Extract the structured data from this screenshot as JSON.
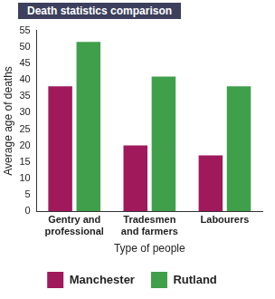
{
  "chart_data": {
    "type": "bar",
    "title": "Death statistics comparison",
    "x_label": "Type of people",
    "y_label": "Average age of deaths",
    "categories": [
      "Gentry and professional",
      "Tradesmen and farmers",
      "Labourers"
    ],
    "series": [
      {
        "name": "Manchester",
        "color": "#a0195b",
        "values": [
          38,
          20,
          17
        ]
      },
      {
        "name": "Rutland",
        "color": "#3f9f4a",
        "values": [
          51.5,
          41,
          38
        ]
      }
    ],
    "ylim": [
      0,
      55
    ],
    "yticks": [
      0,
      5,
      10,
      15,
      20,
      25,
      30,
      35,
      40,
      45,
      50,
      55
    ],
    "grid": false,
    "legend": "bottom"
  }
}
